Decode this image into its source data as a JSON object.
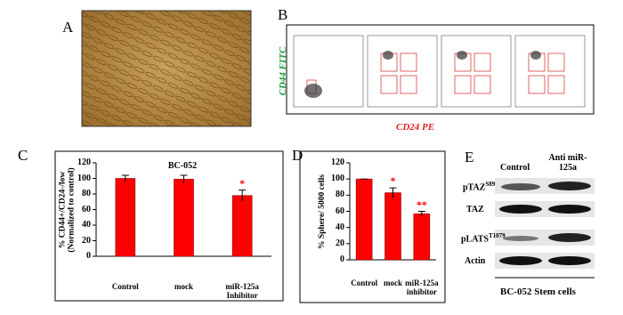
{
  "panels": {
    "A": {
      "label": "A"
    },
    "B": {
      "label": "B",
      "y_axis_label": "CD44 FITC",
      "x_axis_label": "CD24 PE"
    },
    "E": {
      "label": "E",
      "columns": [
        "Control",
        "Anti miR-125a"
      ],
      "rows": [
        {
          "name": "pTAZ",
          "superscript": "S89"
        },
        {
          "name": "TAZ"
        },
        {
          "name": "pLATS",
          "superscript": "T1079"
        },
        {
          "name": "Actin"
        }
      ],
      "caption": "BC-052 Stem cells"
    }
  },
  "chart_data": [
    {
      "type": "bar",
      "panel_label": "C",
      "title": "BC-052",
      "y_axis_label": "% CD44+/CD24-/low (Normalized to control)",
      "categories": [
        "Control",
        "mock",
        "miR-125a Inhibitor"
      ],
      "values": [
        100,
        99,
        78
      ],
      "errors": [
        4,
        5,
        7
      ],
      "significance": [
        null,
        null,
        "*"
      ],
      "color": "#ff0000",
      "ylim": [
        0,
        120
      ],
      "yticks": [
        0,
        20,
        40,
        60,
        80,
        100,
        120
      ]
    },
    {
      "type": "bar",
      "panel_label": "D",
      "y_axis_label": "% Sphere/ 5000 cells",
      "categories": [
        "Control",
        "mock",
        "miR-125a inhibitor"
      ],
      "values": [
        100,
        83,
        57
      ],
      "errors": [
        0,
        6,
        3
      ],
      "significance": [
        null,
        "*",
        "**"
      ],
      "color": "#ff0000",
      "ylim": [
        0,
        120
      ],
      "yticks": [
        0,
        20,
        40,
        60,
        80,
        100,
        120
      ]
    }
  ]
}
